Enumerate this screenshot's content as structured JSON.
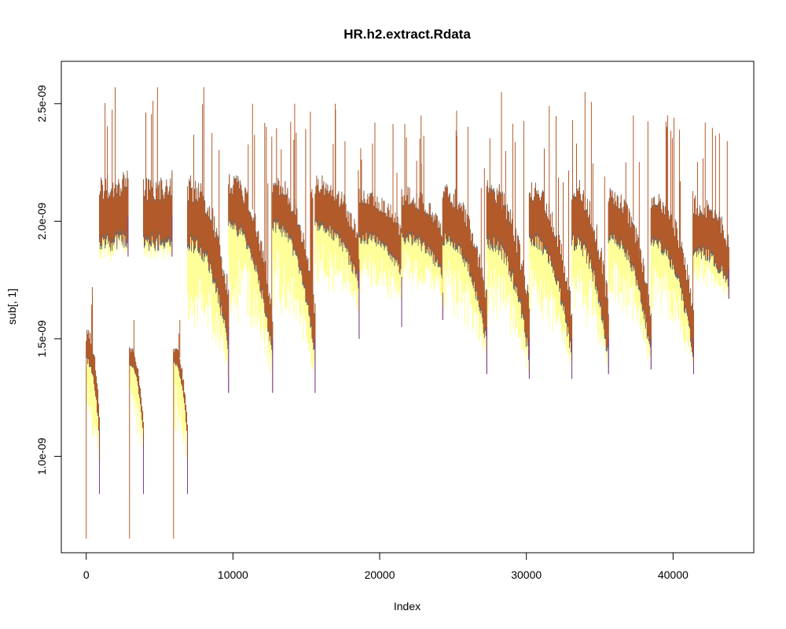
{
  "chart_data": {
    "type": "line",
    "title": "HR.h2.extract.Rdata",
    "xlabel": "Index",
    "ylabel": "sub[, 1]",
    "xlim": [
      -1700,
      45500
    ],
    "ylim": [
      5.9e-10,
      2.68e-09
    ],
    "x_ticks": [
      {
        "value": 0,
        "label": "0"
      },
      {
        "value": 10000,
        "label": "10000"
      },
      {
        "value": 20000,
        "label": "20000"
      },
      {
        "value": 30000,
        "label": "30000"
      },
      {
        "value": 40000,
        "label": "40000"
      }
    ],
    "y_ticks": [
      {
        "value": 1e-09,
        "label": "1.0e-09"
      },
      {
        "value": 1.5e-09,
        "label": "1.5e-09"
      },
      {
        "value": 2e-09,
        "label": "2.0e-09"
      },
      {
        "value": 2.5e-09,
        "label": "2.5e-09"
      }
    ],
    "colors": {
      "main": "#b35a2a",
      "shadow": "#6b6b6b",
      "low": "#ffff99",
      "accent": "#7b3fa0"
    },
    "segments": [
      {
        "start": 0,
        "end": 900,
        "base_start": 1.45e-09,
        "base_end": 1.12e-09,
        "peak": 1.72e-09,
        "low": 8.4e-10,
        "dip": 6.5e-10
      },
      {
        "start": 900,
        "end": 2850,
        "base_start": 2e-09,
        "base_end": 2.02e-09,
        "peak": 2.57e-09,
        "low": 1.85e-09
      },
      {
        "start": 2950,
        "end": 3900,
        "base_start": 1.42e-09,
        "base_end": 1.1e-09,
        "peak": 1.58e-09,
        "low": 8.4e-10,
        "dip": 6.5e-10
      },
      {
        "start": 3900,
        "end": 5850,
        "base_start": 2e-09,
        "base_end": 2.02e-09,
        "peak": 2.57e-09,
        "low": 1.85e-09
      },
      {
        "start": 5950,
        "end": 6900,
        "base_start": 1.42e-09,
        "base_end": 1.1e-09,
        "peak": 1.58e-09,
        "low": 8.4e-10,
        "dip": 6.5e-10
      },
      {
        "start": 6900,
        "end": 9700,
        "base_start": 2e-09,
        "base_end": 1.55e-09,
        "peak": 2.57e-09,
        "low": 1.27e-09
      },
      {
        "start": 9700,
        "end": 12700,
        "base_start": 2.05e-09,
        "base_end": 1.5e-09,
        "peak": 2.5e-09,
        "low": 1.27e-09
      },
      {
        "start": 12700,
        "end": 15600,
        "base_start": 2.05e-09,
        "base_end": 1.5e-09,
        "peak": 2.5e-09,
        "low": 1.27e-09
      },
      {
        "start": 15600,
        "end": 18600,
        "base_start": 2.05e-09,
        "base_end": 1.8e-09,
        "peak": 2.5e-09,
        "low": 1.5e-09
      },
      {
        "start": 18600,
        "end": 21500,
        "base_start": 2e-09,
        "base_end": 1.85e-09,
        "peak": 2.42e-09,
        "low": 1.55e-09
      },
      {
        "start": 21500,
        "end": 24300,
        "base_start": 2e-09,
        "base_end": 1.85e-09,
        "peak": 2.45e-09,
        "low": 1.58e-09
      },
      {
        "start": 24300,
        "end": 27300,
        "base_start": 2e-09,
        "base_end": 1.55e-09,
        "peak": 2.47e-09,
        "low": 1.35e-09
      },
      {
        "start": 27300,
        "end": 30200,
        "base_start": 2e-09,
        "base_end": 1.5e-09,
        "peak": 2.55e-09,
        "low": 1.33e-09
      },
      {
        "start": 30200,
        "end": 33100,
        "base_start": 2e-09,
        "base_end": 1.5e-09,
        "peak": 2.49e-09,
        "low": 1.33e-09
      },
      {
        "start": 33100,
        "end": 35600,
        "base_start": 2e-09,
        "base_end": 1.5e-09,
        "peak": 2.55e-09,
        "low": 1.35e-09
      },
      {
        "start": 35600,
        "end": 38500,
        "base_start": 2e-09,
        "base_end": 1.5e-09,
        "peak": 2.45e-09,
        "low": 1.37e-09
      },
      {
        "start": 38500,
        "end": 41400,
        "base_start": 1.98e-09,
        "base_end": 1.5e-09,
        "peak": 2.45e-09,
        "low": 1.35e-09
      },
      {
        "start": 41400,
        "end": 43800,
        "base_start": 1.95e-09,
        "base_end": 1.8e-09,
        "peak": 2.42e-09,
        "low": 1.67e-09
      }
    ]
  }
}
